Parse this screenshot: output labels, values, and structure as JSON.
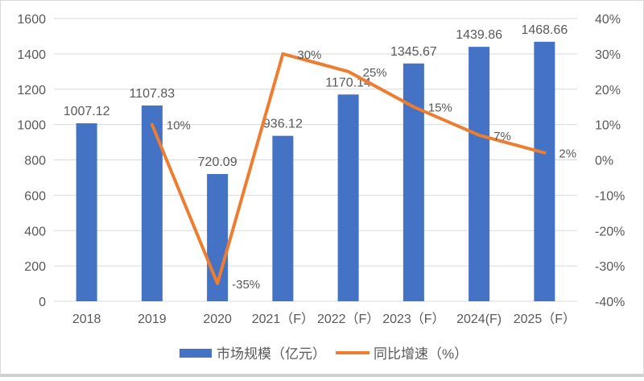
{
  "chart_data": {
    "type": "bar+line",
    "title": "",
    "categories": [
      "2018",
      "2019",
      "2020",
      "2021（F）",
      "2022（F）",
      "2023（F）",
      "2024(F)",
      "2025（F）"
    ],
    "series": [
      {
        "name": "市场规模（亿元）",
        "type": "bar",
        "axis": "left",
        "color": "#4472C4",
        "values": [
          1007.12,
          1107.83,
          720.09,
          936.12,
          1170.14,
          1345.67,
          1439.86,
          1468.66
        ]
      },
      {
        "name": "同比增速（%）",
        "type": "line",
        "axis": "right",
        "color": "#ED7D31",
        "values": [
          null,
          10,
          -35,
          30,
          25,
          15,
          7,
          2
        ],
        "labels": [
          "",
          "10%",
          "-35%",
          "30%",
          "25%",
          "15%",
          "7%",
          "2%"
        ]
      }
    ],
    "bar_labels": [
      "1007.12",
      "1107.83",
      "720.09",
      "936.12",
      "1170.14",
      "1345.67",
      "1439.86",
      "1468.66"
    ],
    "y_left": {
      "ticks": [
        "0",
        "200",
        "400",
        "600",
        "800",
        "1000",
        "1200",
        "1400",
        "1600"
      ],
      "range": [
        0,
        1600
      ]
    },
    "y_right": {
      "ticks": [
        "-40%",
        "-30%",
        "-20%",
        "-10%",
        "0%",
        "10%",
        "20%",
        "30%",
        "40%"
      ],
      "range": [
        -40,
        40
      ]
    },
    "grid": true,
    "legend_position": "bottom"
  },
  "legend": [
    {
      "label": "市场规模（亿元）",
      "color": "#4472C4"
    },
    {
      "label": "同比增速（%）",
      "color": "#ED7D31"
    }
  ]
}
